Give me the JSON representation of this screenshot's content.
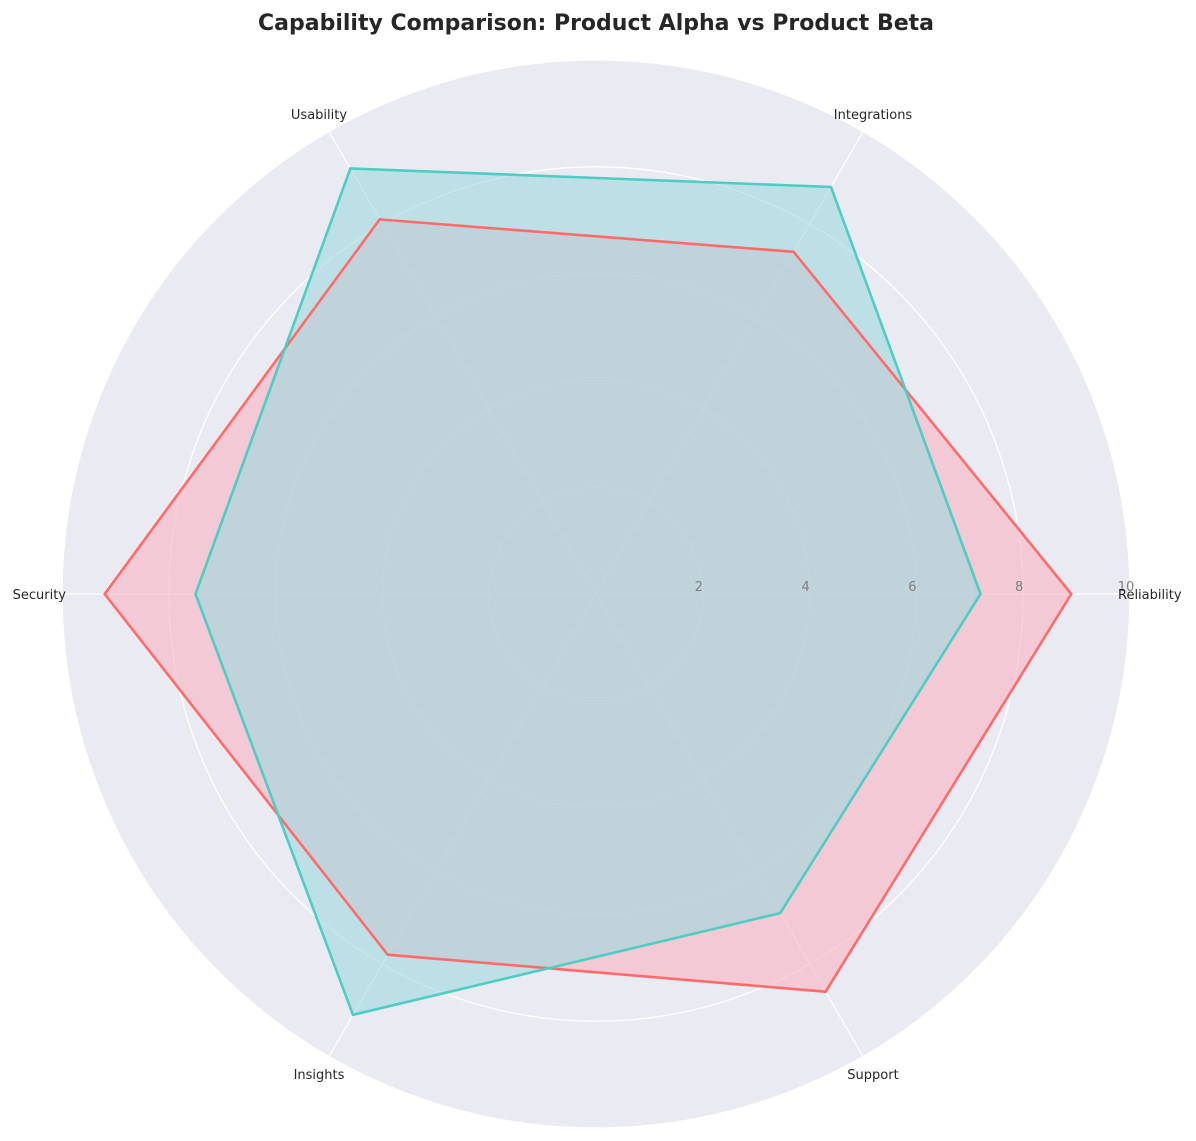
{
  "chart_data": {
    "type": "radar",
    "title": "Capability Comparison: Product Alpha vs Product Beta",
    "categories": [
      "Reliability",
      "Integrations",
      "Usability",
      "Security",
      "Insights",
      "Support"
    ],
    "rlim": [
      0,
      10
    ],
    "rticks": [
      2,
      4,
      6,
      8,
      10
    ],
    "grid": true,
    "background_color": "#eaeaf2",
    "series": [
      {
        "values": [
          8.9,
          7.4,
          8.1,
          9.2,
          7.8,
          8.6
        ],
        "color": "#ff6b6b",
        "fill_color": "#f7b3c0"
      },
      {
        "values": [
          7.2,
          8.8,
          9.2,
          7.5,
          9.1,
          6.9
        ],
        "color": "#4ecdc4",
        "fill_color": "#9fd8de"
      }
    ]
  }
}
